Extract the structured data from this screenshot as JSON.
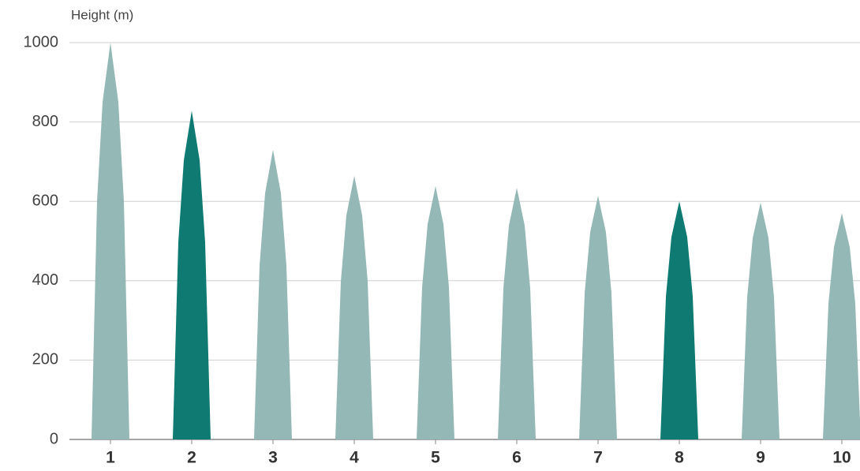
{
  "chart_data": {
    "type": "bar",
    "y_label": "Height (m)",
    "categories": [
      "1",
      "2",
      "3",
      "4",
      "5",
      "6",
      "7",
      "8",
      "9",
      "10"
    ],
    "values": [
      1000,
      828,
      730,
      664,
      638,
      634,
      614,
      600,
      597,
      570
    ],
    "colors": [
      "#93b8b6",
      "#0e7a72",
      "#93b8b6",
      "#93b8b6",
      "#93b8b6",
      "#93b8b6",
      "#93b8b6",
      "#0e7a72",
      "#93b8b6",
      "#93b8b6"
    ],
    "ylim": [
      0,
      1000
    ],
    "yticks": [
      0,
      200,
      400,
      600,
      800,
      1000
    ],
    "grid": true
  }
}
